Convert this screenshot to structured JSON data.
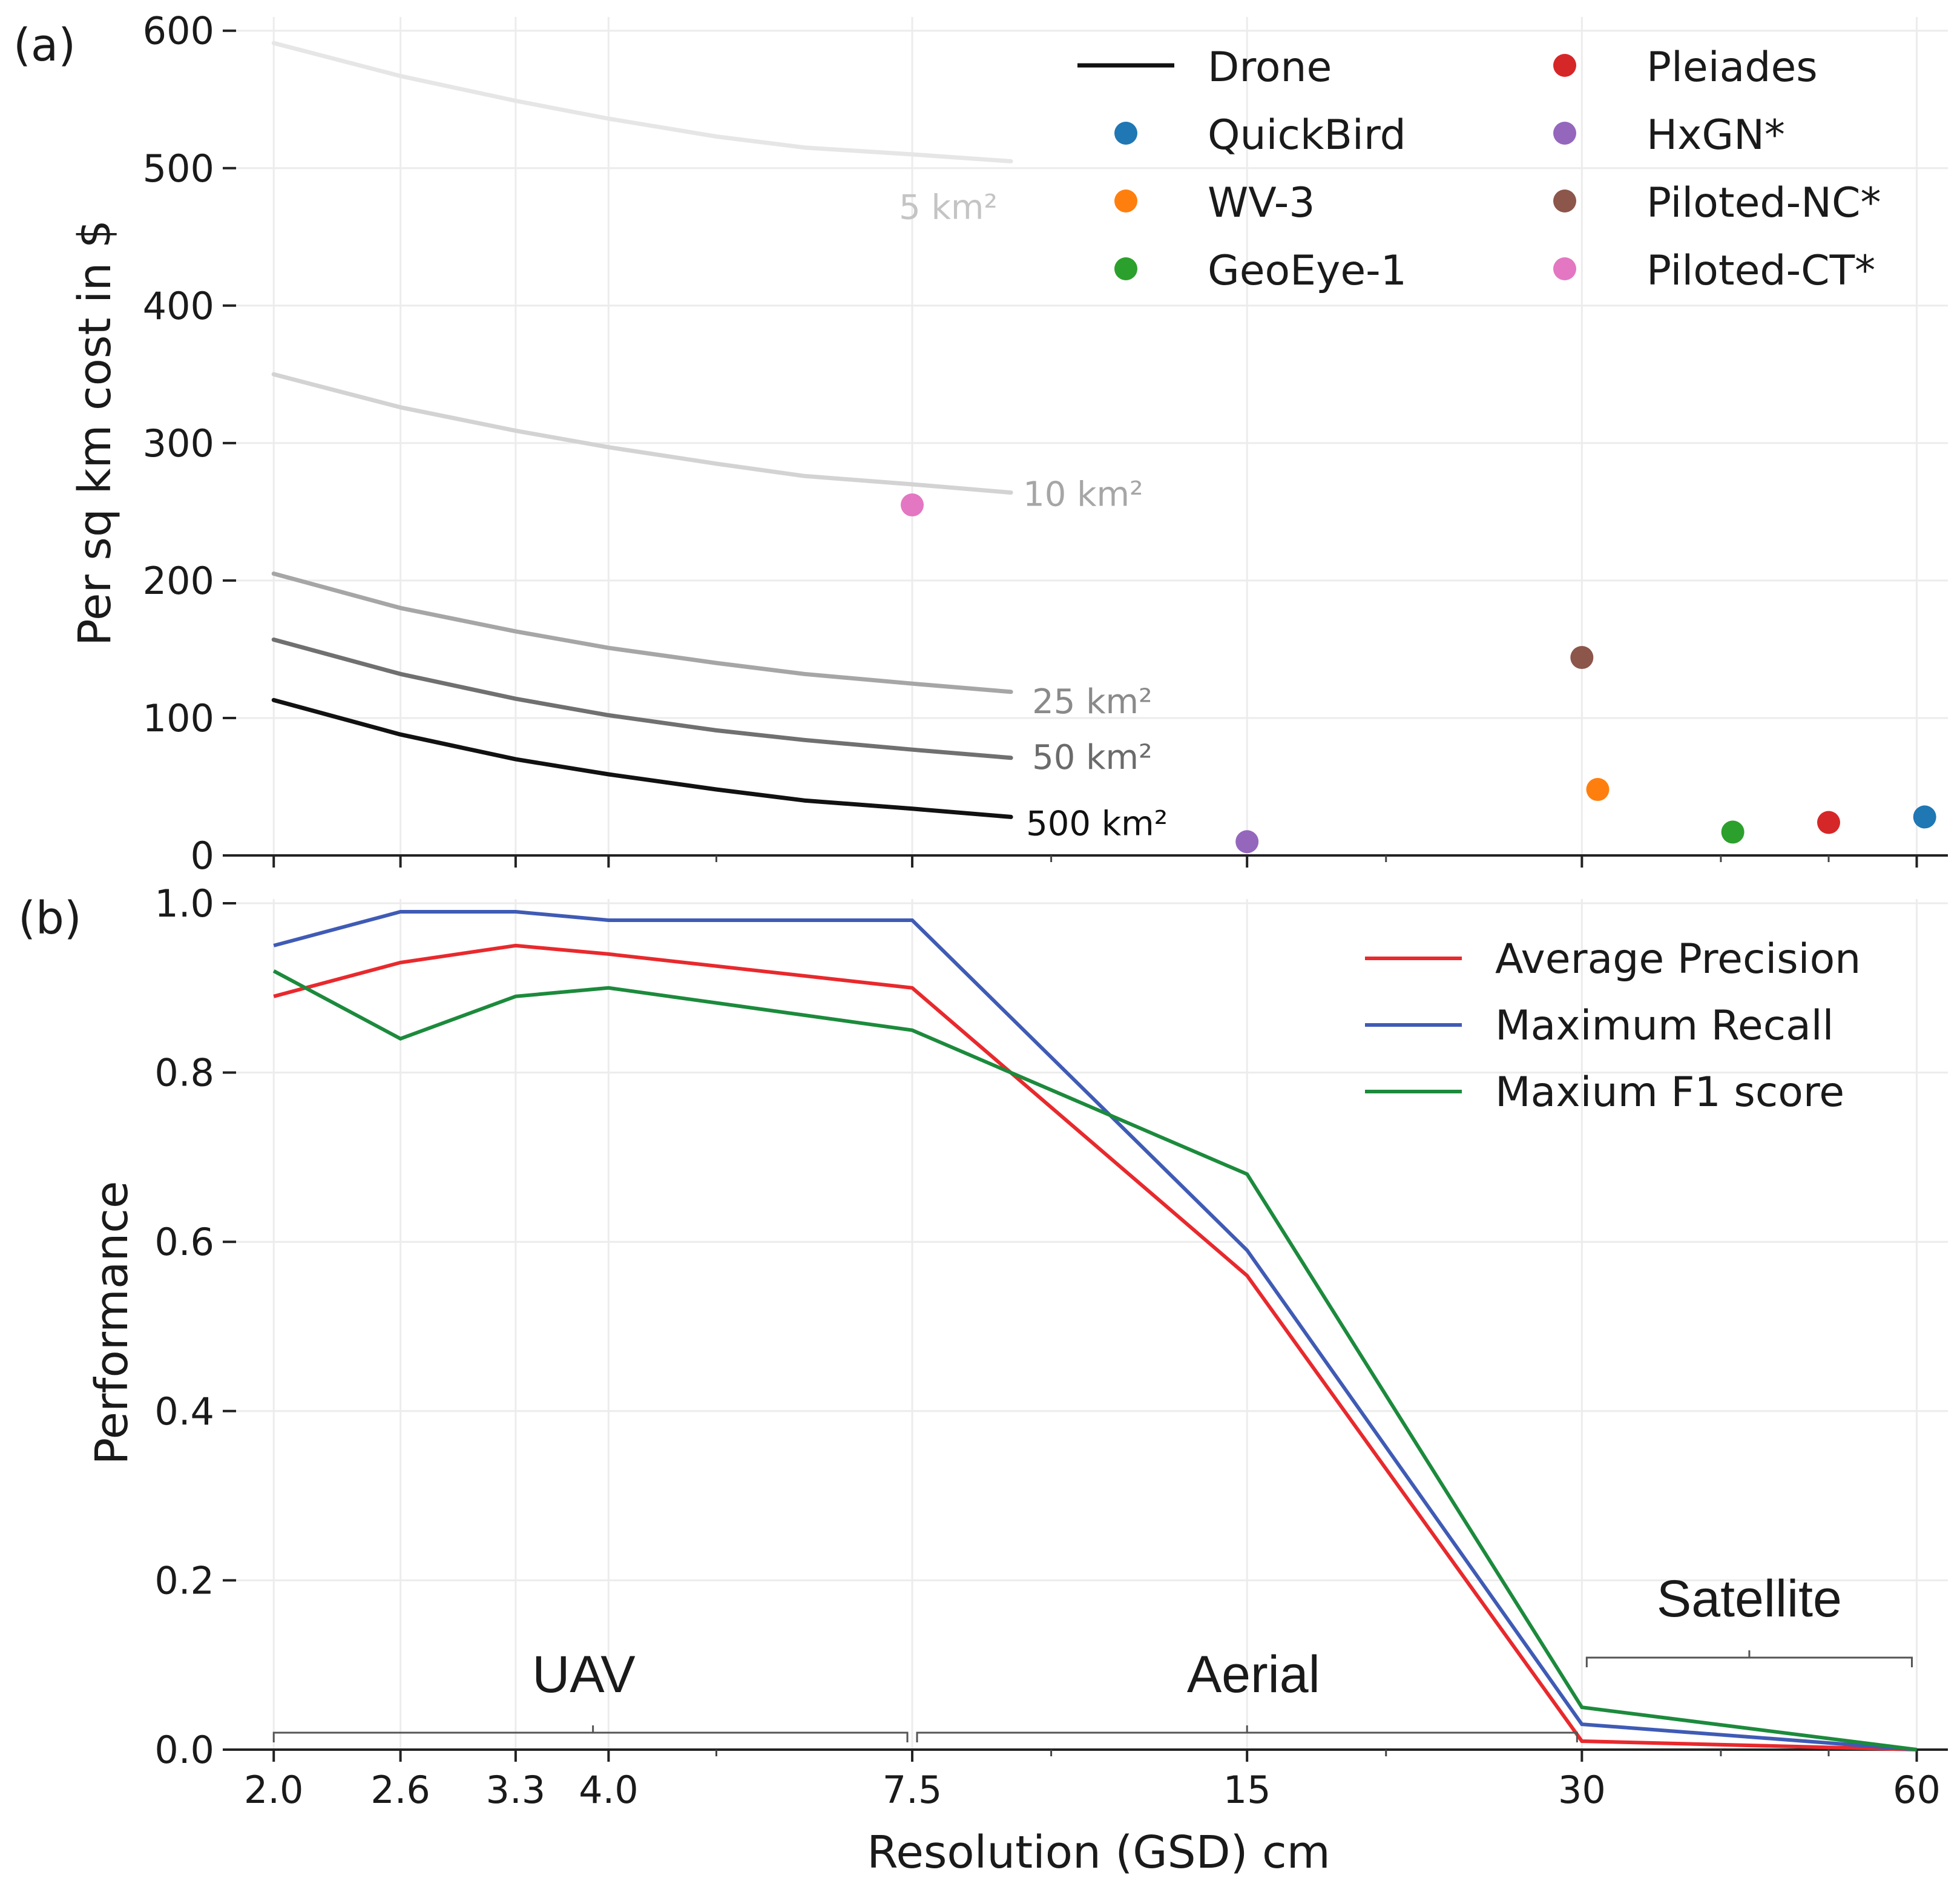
{
  "chart_data": [
    {
      "id": "a",
      "panel_label": "(a)",
      "type": "line",
      "title": "",
      "xlabel": "",
      "ylabel": "Per sq km cost in $",
      "xscale": "log",
      "xlim": [
        1.85,
        64
      ],
      "ylim": [
        0,
        610
      ],
      "yticks": [
        0,
        100,
        200,
        300,
        400,
        500,
        600
      ],
      "grid": true,
      "legend_position": "top-right",
      "series": [
        {
          "name": "5 km²",
          "color": "#e6e6e6",
          "label_color": "#c4c4c4",
          "x": [
            2.0,
            2.6,
            3.3,
            4.0,
            5.0,
            6.0,
            7.5,
            9.2
          ],
          "y": [
            591,
            567,
            549,
            536,
            523,
            515,
            510,
            505
          ]
        },
        {
          "name": "10 km²",
          "color": "#d3d3d3",
          "label_color": "#a6a6a6",
          "x": [
            2.0,
            2.6,
            3.3,
            4.0,
            5.0,
            6.0,
            7.5,
            9.2
          ],
          "y": [
            350,
            326,
            309,
            297,
            285,
            276,
            270,
            264
          ]
        },
        {
          "name": "25 km²",
          "color": "#a6a6a6",
          "label_color": "#8a8a8a",
          "x": [
            2.0,
            2.6,
            3.3,
            4.0,
            5.0,
            6.0,
            7.5,
            9.2
          ],
          "y": [
            205,
            180,
            163,
            151,
            140,
            132,
            125,
            119
          ]
        },
        {
          "name": "50 km²",
          "color": "#707070",
          "label_color": "#6b6b6b",
          "x": [
            2.0,
            2.6,
            3.3,
            4.0,
            5.0,
            6.0,
            7.5,
            9.2
          ],
          "y": [
            157,
            132,
            114,
            102,
            91,
            84,
            77,
            71
          ]
        },
        {
          "name": "500 km²",
          "color": "#111111",
          "label_color": "#111111",
          "x": [
            2.0,
            2.6,
            3.3,
            4.0,
            5.0,
            6.0,
            7.5,
            9.2
          ],
          "y": [
            113,
            88,
            70,
            59,
            48,
            40,
            34,
            28
          ]
        }
      ],
      "points": [
        {
          "name": "QuickBird",
          "x": 61,
          "y": 28,
          "color": "#1f77b4"
        },
        {
          "name": "WV-3",
          "x": 31,
          "y": 48,
          "color": "#ff7f0e"
        },
        {
          "name": "GeoEye-1",
          "x": 41,
          "y": 17,
          "color": "#2ca02c"
        },
        {
          "name": "Pleiades",
          "x": 50,
          "y": 24,
          "color": "#d62728"
        },
        {
          "name": "HxGN*",
          "x": 15,
          "y": 10,
          "color": "#9467bd"
        },
        {
          "name": "Piloted-NC*",
          "x": 30,
          "y": 144,
          "color": "#8c564b"
        },
        {
          "name": "Piloted-CT*",
          "x": 7.5,
          "y": 255,
          "color": "#e377c2"
        }
      ],
      "legend": {
        "line_entry": {
          "name": "Drone",
          "color": "#111111"
        },
        "point_entries_col1": [
          "QuickBird",
          "WV-3",
          "GeoEye-1"
        ],
        "point_entries_col2": [
          "Pleiades",
          "HxGN*",
          "Piloted-NC*",
          "Piloted-CT*"
        ]
      }
    },
    {
      "id": "b",
      "panel_label": "(b)",
      "type": "line",
      "title": "",
      "xlabel": "Resolution (GSD) cm",
      "ylabel": "Performance",
      "xscale": "log",
      "xlim": [
        1.85,
        64
      ],
      "ylim": [
        0,
        1.005
      ],
      "yticks": [
        0.0,
        0.2,
        0.4,
        0.6,
        0.8,
        1.0
      ],
      "xticks": [
        2.0,
        2.6,
        3.3,
        4.0,
        7.5,
        15,
        30,
        60
      ],
      "xtick_labels": [
        "2.0",
        "2.6",
        "3.3",
        "4.0",
        "7.5",
        "15",
        "30",
        "60"
      ],
      "grid": true,
      "legend_position": "top-right",
      "categories": [
        2.0,
        2.6,
        3.3,
        4.0,
        7.5,
        15,
        30,
        60
      ],
      "series": [
        {
          "name": "Average Precision",
          "color": "#e8292d",
          "values": [
            0.89,
            0.93,
            0.95,
            0.94,
            0.9,
            0.56,
            0.01,
            0.0
          ]
        },
        {
          "name": "Maximum Recall",
          "color": "#3f5bb5",
          "values": [
            0.95,
            0.99,
            0.99,
            0.98,
            0.98,
            0.59,
            0.03,
            0.0
          ]
        },
        {
          "name": "Maxium F1 score",
          "color": "#1c8a3c",
          "values": [
            0.92,
            0.84,
            0.89,
            0.9,
            0.85,
            0.68,
            0.05,
            0.0
          ]
        }
      ],
      "regions": [
        {
          "name": "UAV",
          "from": 2.0,
          "to": 7.5
        },
        {
          "name": "Aerial",
          "from": 7.5,
          "to": 30
        },
        {
          "name": "Satellite",
          "from": 30,
          "to": 60
        }
      ]
    }
  ]
}
